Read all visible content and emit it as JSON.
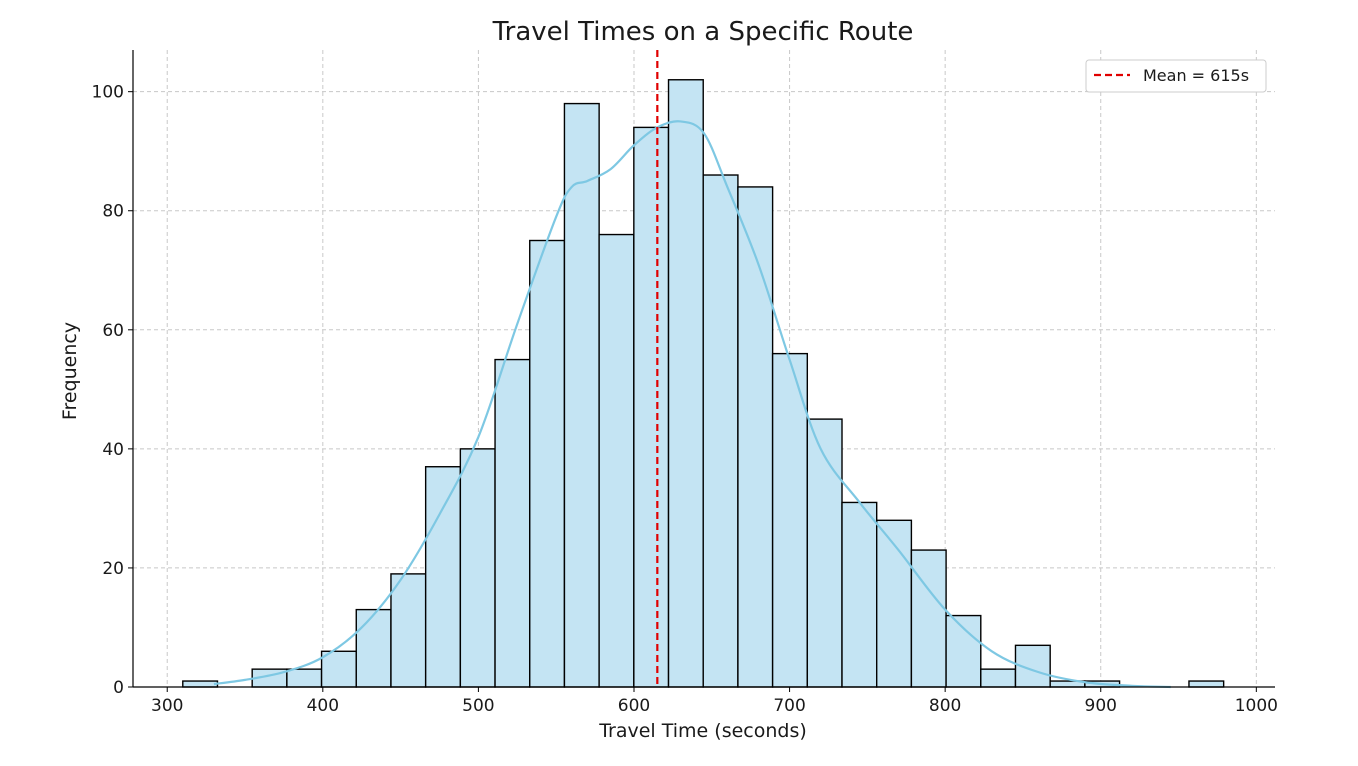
{
  "chart_data": {
    "type": "bar",
    "subtype": "histogram",
    "title": "Travel Times on a Specific Route",
    "xlabel": "Travel Time (seconds)",
    "ylabel": "Frequency",
    "xlim": [
      278,
      1012
    ],
    "ylim": [
      0,
      107
    ],
    "xticks": [
      300,
      400,
      500,
      600,
      700,
      800,
      900,
      1000
    ],
    "yticks": [
      0,
      20,
      40,
      60,
      80,
      100
    ],
    "grid": true,
    "bin_edges": [
      310,
      332.3,
      354.6,
      376.9,
      399.2,
      421.5,
      443.8,
      466.1,
      488.4,
      510.7,
      533.0,
      555.3,
      577.6,
      599.9,
      622.2,
      644.5,
      666.8,
      689.1,
      711.4,
      733.7,
      756.0,
      778.3,
      800.6,
      822.9,
      845.2,
      867.5,
      889.8,
      912.1,
      934.4,
      956.7,
      979.0
    ],
    "counts": [
      1,
      0,
      3,
      3,
      6,
      13,
      19,
      37,
      40,
      55,
      75,
      98,
      76,
      94,
      102,
      86,
      84,
      56,
      45,
      31,
      28,
      23,
      12,
      3,
      7,
      1,
      1,
      0,
      0,
      1
    ],
    "bar_color": "#c4e4f3",
    "bar_edge_color": "#000000",
    "kde": {
      "color": "#7ec8e3",
      "x": [
        330,
        350,
        375,
        400,
        425,
        450,
        475,
        500,
        525,
        550,
        560,
        570,
        585,
        600,
        615,
        630,
        645,
        660,
        680,
        700,
        720,
        745,
        770,
        800,
        830,
        860,
        890,
        920,
        945
      ],
      "y": [
        0.5,
        1.2,
        2.5,
        5,
        10,
        18,
        29,
        42,
        61,
        79,
        84,
        85,
        87,
        91,
        94,
        95,
        93,
        84,
        71,
        55,
        40,
        31,
        23,
        13,
        6,
        2.5,
        0.8,
        0.2,
        0
      ]
    },
    "mean_line": {
      "value": 615,
      "color": "#e00000",
      "style": "dashed",
      "legend_label": "Mean = 615s"
    },
    "legend_position": "top-right"
  }
}
